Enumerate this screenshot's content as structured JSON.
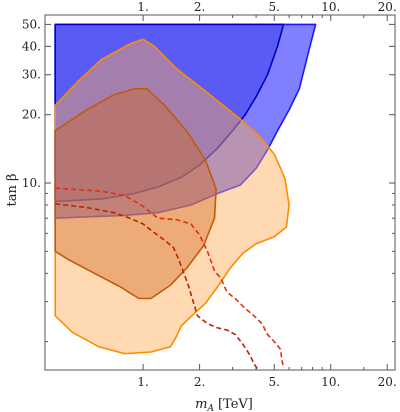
{
  "chart_data": {
    "type": "area",
    "xlabel": "m_A [TeV]",
    "xlabel_main": "m",
    "xlabel_sub": "A",
    "xlabel_unit": "[TeV]",
    "ylabel": "tan β",
    "x_scale": "log",
    "y_scale": "log",
    "xlim": [
      0.3,
      22
    ],
    "ylim": [
      1.5,
      55
    ],
    "x_ticks": [
      {
        "value": 1,
        "label": "1."
      },
      {
        "value": 2,
        "label": "2."
      },
      {
        "value": 5,
        "label": "5."
      },
      {
        "value": 10,
        "label": "10."
      },
      {
        "value": 20,
        "label": "20."
      }
    ],
    "y_ticks": [
      {
        "value": 10,
        "label": "10."
      },
      {
        "value": 20,
        "label": "20."
      },
      {
        "value": 30,
        "label": "30."
      },
      {
        "value": 40,
        "label": "40."
      },
      {
        "value": 50,
        "label": "50."
      }
    ],
    "y_minor_ticks": [
      2,
      3,
      4,
      5,
      6,
      7,
      8,
      9
    ],
    "regions": [
      {
        "id": "blue-light",
        "fill": "#8080ff",
        "stroke": "#1a1aff",
        "opacity": 1,
        "points": [
          [
            0.34,
            50
          ],
          [
            8.3,
            50
          ],
          [
            7.5,
            36
          ],
          [
            6.8,
            26
          ],
          [
            6.0,
            21
          ],
          [
            5.2,
            17
          ],
          [
            4.6,
            14
          ],
          [
            4.0,
            11.6
          ],
          [
            3.3,
            9.8
          ],
          [
            2.5,
            9.0
          ],
          [
            1.8,
            8.0
          ],
          [
            1.2,
            7.4
          ],
          [
            0.8,
            7.2
          ],
          [
            0.5,
            7.1
          ],
          [
            0.34,
            7.0
          ]
        ]
      },
      {
        "id": "blue-dark",
        "fill": "#5a5af5",
        "stroke": "#0000cc",
        "opacity": 1,
        "points": [
          [
            0.34,
            50
          ],
          [
            5.6,
            50
          ],
          [
            5.2,
            40
          ],
          [
            4.6,
            30
          ],
          [
            4.0,
            24
          ],
          [
            3.5,
            20
          ],
          [
            3.0,
            17
          ],
          [
            2.5,
            14.3
          ],
          [
            2.0,
            12.0
          ],
          [
            1.6,
            10.6
          ],
          [
            1.2,
            9.6
          ],
          [
            0.9,
            9.0
          ],
          [
            0.6,
            8.5
          ],
          [
            0.34,
            8.3
          ]
        ]
      },
      {
        "id": "orange-outer",
        "fill": "#ffaa55",
        "stroke": "#ff8c00",
        "opacity": 0.45,
        "points": [
          [
            0.34,
            22
          ],
          [
            0.45,
            28
          ],
          [
            0.6,
            35
          ],
          [
            0.85,
            41
          ],
          [
            1.0,
            43
          ],
          [
            1.15,
            40
          ],
          [
            1.5,
            32
          ],
          [
            2.2,
            25
          ],
          [
            3.2,
            19.5
          ],
          [
            4.2,
            16
          ],
          [
            5.0,
            13.4
          ],
          [
            5.7,
            10.5
          ],
          [
            6.0,
            8.0
          ],
          [
            5.8,
            6.4
          ],
          [
            5.0,
            5.8
          ],
          [
            4.0,
            5.4
          ],
          [
            3.4,
            4.9
          ],
          [
            2.9,
            4.2
          ],
          [
            2.5,
            3.5
          ],
          [
            2.15,
            2.95
          ],
          [
            1.8,
            2.58
          ],
          [
            1.6,
            2.35
          ],
          [
            1.5,
            2.1
          ],
          [
            1.4,
            1.9
          ],
          [
            1.1,
            1.8
          ],
          [
            0.8,
            1.77
          ],
          [
            0.58,
            1.9
          ],
          [
            0.42,
            2.2
          ],
          [
            0.34,
            2.6
          ]
        ]
      },
      {
        "id": "orange-inner",
        "fill": "#d2691e",
        "stroke": "#c05a10",
        "opacity": 0.4,
        "points": [
          [
            0.34,
            17
          ],
          [
            0.5,
            21
          ],
          [
            0.7,
            24.5
          ],
          [
            0.9,
            26
          ],
          [
            1.05,
            26
          ],
          [
            1.3,
            22
          ],
          [
            1.7,
            17
          ],
          [
            2.15,
            12.6
          ],
          [
            2.45,
            9.4
          ],
          [
            2.4,
            7.0
          ],
          [
            2.1,
            5.3
          ],
          [
            1.7,
            4.2
          ],
          [
            1.4,
            3.55
          ],
          [
            1.1,
            3.1
          ],
          [
            0.95,
            3.1
          ],
          [
            0.75,
            3.5
          ],
          [
            0.55,
            4.0
          ],
          [
            0.4,
            4.6
          ],
          [
            0.34,
            5.0
          ]
        ]
      }
    ],
    "dashed_curves": [
      {
        "id": "dashed-red-upper",
        "color": "#e03010",
        "points": [
          [
            0.34,
            9.5
          ],
          [
            0.6,
            9.2
          ],
          [
            0.8,
            8.8
          ],
          [
            1.0,
            7.9
          ],
          [
            1.2,
            7.0
          ],
          [
            1.5,
            6.9
          ],
          [
            1.8,
            6.6
          ],
          [
            2.0,
            5.9
          ],
          [
            2.2,
            5.0
          ],
          [
            2.4,
            4.1
          ],
          [
            2.6,
            3.8
          ],
          [
            2.8,
            3.3
          ],
          [
            3.1,
            3.1
          ],
          [
            3.5,
            2.8
          ],
          [
            3.9,
            2.6
          ],
          [
            4.3,
            2.4
          ],
          [
            4.6,
            2.15
          ],
          [
            5.0,
            2.0
          ],
          [
            5.4,
            1.85
          ],
          [
            5.5,
            1.65
          ],
          [
            5.6,
            1.55
          ]
        ]
      },
      {
        "id": "dashed-red-lower",
        "color": "#c02000",
        "points": [
          [
            0.34,
            8.1
          ],
          [
            0.5,
            7.8
          ],
          [
            0.7,
            7.4
          ],
          [
            0.85,
            7.0
          ],
          [
            1.0,
            6.6
          ],
          [
            1.1,
            6.2
          ],
          [
            1.3,
            5.6
          ],
          [
            1.45,
            5.2
          ],
          [
            1.55,
            4.6
          ],
          [
            1.65,
            4.0
          ],
          [
            1.75,
            3.5
          ],
          [
            1.85,
            3.0
          ],
          [
            1.95,
            2.6
          ],
          [
            2.2,
            2.4
          ],
          [
            2.5,
            2.3
          ],
          [
            2.8,
            2.25
          ],
          [
            3.1,
            2.15
          ],
          [
            3.4,
            1.95
          ],
          [
            3.7,
            1.75
          ],
          [
            3.9,
            1.6
          ],
          [
            4.1,
            1.5
          ]
        ]
      }
    ]
  }
}
